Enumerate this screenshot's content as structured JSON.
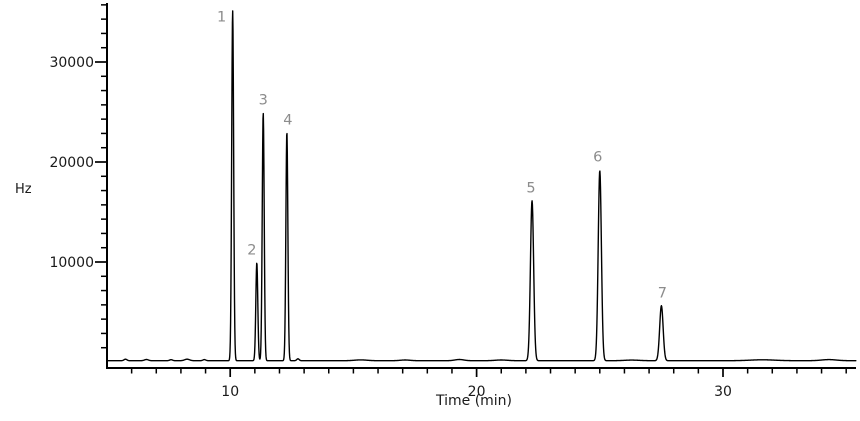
{
  "figure": {
    "background_color": "#ffffff",
    "trace_color": "#000000",
    "axis_color": "#000000",
    "tick_label_color": "#1a1a1a",
    "peak_label_color": "#8c8c8c"
  },
  "chart_data": {
    "type": "line",
    "subtype": "chromatogram",
    "title": "",
    "xlabel": "Time (min)",
    "ylabel": "Hz",
    "xlim": [
      5,
      35.4
    ],
    "ylim": [
      0,
      35700
    ],
    "x_ticks_major": [
      10,
      20,
      30
    ],
    "x_tick_labels": [
      "10",
      "20",
      "30"
    ],
    "x_minor_tick_step_min": 1,
    "x_minor_tick_range": [
      6,
      35
    ],
    "y_ticks_major": [
      10000,
      20000,
      30000
    ],
    "y_tick_labels": [
      "10000",
      "20000",
      "30000"
    ],
    "y_minor_divisions_per_major": 7,
    "grid": false,
    "legend": "none",
    "baseline_hz": 130,
    "peaks": [
      {
        "label": "1",
        "time_min": 10.1,
        "height_hz": 35000,
        "sigma_min": 0.04,
        "label_dx": -11,
        "label_dy": 6
      },
      {
        "label": "2",
        "time_min": 11.08,
        "height_hz": 9800,
        "sigma_min": 0.04,
        "label_dx": -5,
        "label_dy": -13
      },
      {
        "label": "3",
        "time_min": 11.34,
        "height_hz": 24800,
        "sigma_min": 0.04,
        "label_dx": 0,
        "label_dy": -13
      },
      {
        "label": "4",
        "time_min": 12.3,
        "height_hz": 22900,
        "sigma_min": 0.04,
        "label_dx": 1,
        "label_dy": -12
      },
      {
        "label": "5",
        "time_min": 22.25,
        "height_hz": 16000,
        "sigma_min": 0.065,
        "label_dx": -1,
        "label_dy": -13
      },
      {
        "label": "6",
        "time_min": 25.0,
        "height_hz": 19000,
        "sigma_min": 0.065,
        "label_dx": -2,
        "label_dy": -14
      },
      {
        "label": "7",
        "time_min": 27.5,
        "height_hz": 5500,
        "sigma_min": 0.07,
        "label_dx": 1,
        "label_dy": -13
      }
    ],
    "baseline_noise_bumps": [
      {
        "time_min": 5.75,
        "height_hz": 150,
        "sigma_min": 0.06
      },
      {
        "time_min": 6.6,
        "height_hz": 120,
        "sigma_min": 0.08
      },
      {
        "time_min": 7.6,
        "height_hz": 100,
        "sigma_min": 0.06
      },
      {
        "time_min": 8.25,
        "height_hz": 150,
        "sigma_min": 0.1
      },
      {
        "time_min": 8.95,
        "height_hz": 110,
        "sigma_min": 0.06
      },
      {
        "time_min": 12.75,
        "height_hz": 190,
        "sigma_min": 0.05
      },
      {
        "time_min": 15.3,
        "height_hz": 80,
        "sigma_min": 0.25
      },
      {
        "time_min": 17.1,
        "height_hz": 70,
        "sigma_min": 0.2
      },
      {
        "time_min": 19.3,
        "height_hz": 120,
        "sigma_min": 0.18
      },
      {
        "time_min": 21.0,
        "height_hz": 70,
        "sigma_min": 0.25
      },
      {
        "time_min": 26.3,
        "height_hz": 60,
        "sigma_min": 0.3
      },
      {
        "time_min": 31.6,
        "height_hz": 90,
        "sigma_min": 0.5
      },
      {
        "time_min": 34.3,
        "height_hz": 110,
        "sigma_min": 0.3
      }
    ]
  }
}
